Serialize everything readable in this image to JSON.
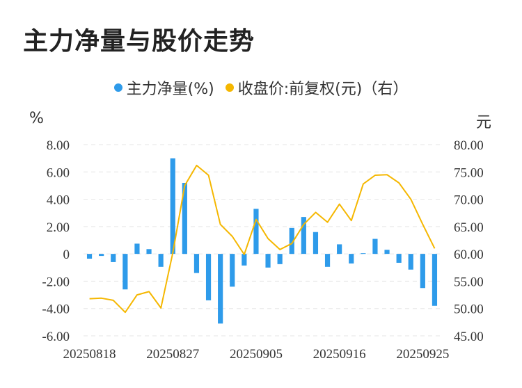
{
  "title": "主力净量与股价走势",
  "legend": {
    "bar_label": "主力净量(%)",
    "line_label": "收盘价:前复权(元)（右）"
  },
  "units": {
    "left": "%",
    "right": "元"
  },
  "colors": {
    "bar": "#2e9bea",
    "line": "#f5b700",
    "grid": "#e6e6e6"
  },
  "chart_data": {
    "type": "bar",
    "x_tick_labels": [
      "20250818",
      "20250827",
      "20250905",
      "20250916",
      "20250925"
    ],
    "x_tick_indices": [
      0,
      7,
      14,
      21,
      28
    ],
    "y_left": {
      "ticks": [
        "8.00",
        "6.00",
        "4.00",
        "2.00",
        "0",
        "-2.00",
        "-4.00",
        "-6.00"
      ],
      "range": [
        -6,
        8
      ]
    },
    "y_right": {
      "ticks": [
        "80.00",
        "75.00",
        "70.00",
        "65.00",
        "60.00",
        "55.00",
        "50.00",
        "45.00"
      ],
      "range": [
        45,
        80
      ]
    },
    "grid": true,
    "series": [
      {
        "name": "主力净量(%)",
        "type": "bar",
        "axis": "left",
        "values": [
          -0.35,
          -0.15,
          -0.6,
          -2.6,
          0.75,
          0.35,
          -0.95,
          7.0,
          5.2,
          -1.4,
          -3.4,
          -5.1,
          -2.4,
          -0.85,
          3.3,
          -1.0,
          -0.75,
          1.9,
          2.7,
          1.6,
          -0.95,
          0.7,
          -0.7,
          0.05,
          1.1,
          0.3,
          -0.65,
          -1.15,
          -2.5,
          -3.8
        ]
      },
      {
        "name": "收盘价:前复权(元)（右）",
        "type": "line",
        "axis": "right",
        "values": [
          51.8,
          51.9,
          51.5,
          49.3,
          52.5,
          53.1,
          50.1,
          60.2,
          72.5,
          76.2,
          74.4,
          65.4,
          63.2,
          59.9,
          66.3,
          62.8,
          60.8,
          61.9,
          65.4,
          67.6,
          65.8,
          69.1,
          66.1,
          72.8,
          74.4,
          74.5,
          73.0,
          70.0,
          65.4,
          61.0
        ]
      }
    ]
  }
}
